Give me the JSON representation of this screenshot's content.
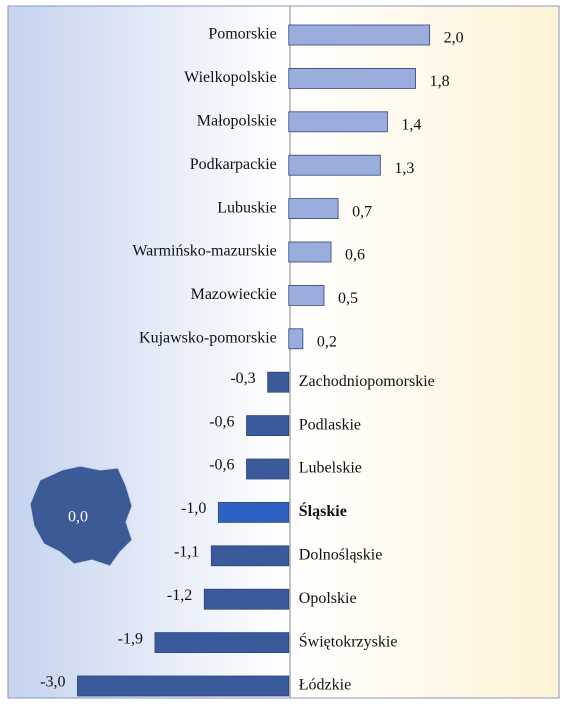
{
  "chart_data": {
    "type": "barh",
    "categories": [
      "Pomorskie",
      "Wielkopolskie",
      "Małopolskie",
      "Podkarpackie",
      "Lubuskie",
      "Warmińsko-mazurskie",
      "Mazowieckie",
      "Kujawsko-pomorskie",
      "Zachodniopomorskie",
      "Podlaskie",
      "Lubelskie",
      "Śląskie",
      "Dolnośląskie",
      "Opolskie",
      "Świętokrzyskie",
      "Łódzkie"
    ],
    "values": [
      2.0,
      1.8,
      1.4,
      1.3,
      0.7,
      0.6,
      0.5,
      0.2,
      -0.3,
      -0.6,
      -0.6,
      -1.0,
      -1.1,
      -1.2,
      -1.9,
      -3.0
    ],
    "value_labels": [
      "2,0",
      "1,8",
      "1,4",
      "1,3",
      "0,7",
      "0,6",
      "0,5",
      "0,2",
      "-0,3",
      "-0,6",
      "-0,6",
      "-1,0",
      "-1,1",
      "-1,2",
      "-1,9",
      "-3,0"
    ],
    "xlim": [
      -4.1,
      3.95
    ],
    "color_positive": "#9aaddd",
    "color_negative": "#3a5a9b",
    "highlight": "Śląskie",
    "highlight_color": "#2d62c2",
    "annotation": "0,0"
  }
}
